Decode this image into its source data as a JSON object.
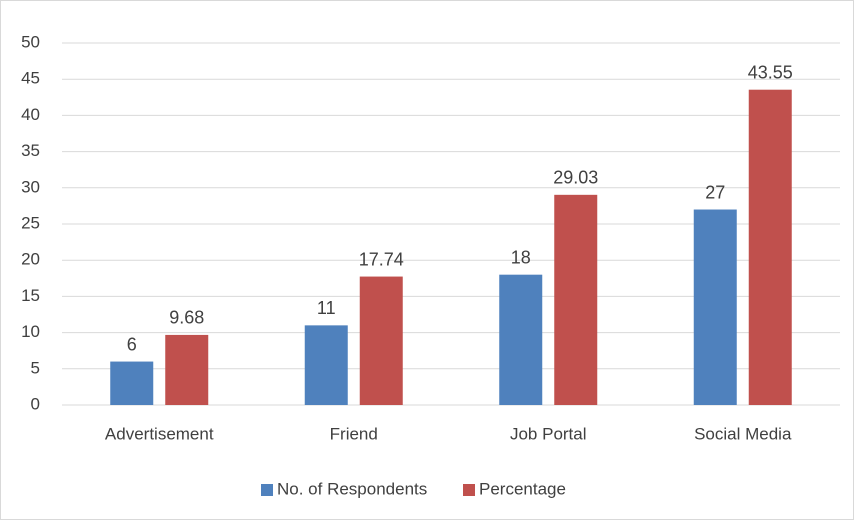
{
  "chart_data": {
    "type": "bar",
    "categories": [
      "Advertisement",
      "Friend",
      "Job Portal",
      "Social Media"
    ],
    "series": [
      {
        "name": "No. of Respondents",
        "color": "#4f81bd",
        "values": [
          6,
          11,
          18,
          27
        ]
      },
      {
        "name": "Percentage",
        "color": "#c0504d",
        "values": [
          9.68,
          17.74,
          29.03,
          43.55
        ]
      }
    ],
    "ylim": [
      0,
      50
    ],
    "yticks": [
      0,
      5,
      10,
      15,
      20,
      25,
      30,
      35,
      40,
      45,
      50
    ],
    "grid": true,
    "legend": "bottom"
  }
}
